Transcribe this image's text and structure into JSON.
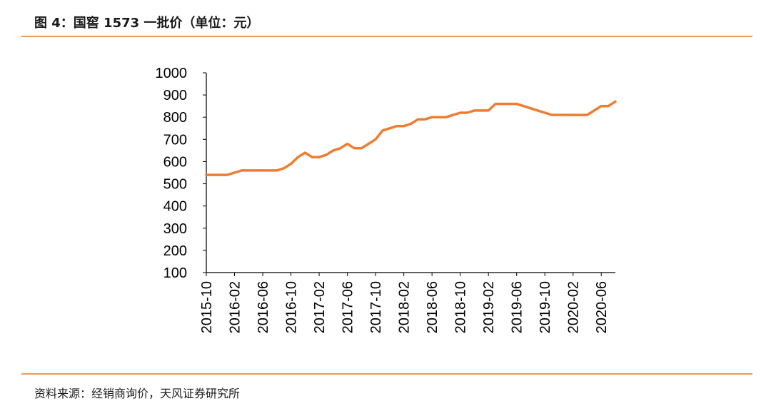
{
  "header": {
    "title": "图 4：国窖 1573 一批价（单位：元）"
  },
  "footer": {
    "source": "资料来源：经销商询价，天风证券研究所"
  },
  "colors": {
    "accent": "#ed9a55",
    "line": "#ed7d31",
    "axis": "#000000"
  },
  "chart_data": {
    "type": "line",
    "title": "",
    "xlabel": "",
    "ylabel": "",
    "ylim": [
      100,
      1000
    ],
    "yticks": [
      100,
      200,
      300,
      400,
      500,
      600,
      700,
      800,
      900,
      1000
    ],
    "grid": false,
    "xticks": [
      "2015-10",
      "2016-02",
      "2016-06",
      "2016-10",
      "2017-02",
      "2017-06",
      "2017-10",
      "2018-02",
      "2018-06",
      "2018-10",
      "2019-02",
      "2019-06",
      "2019-10",
      "2020-02",
      "2020-06"
    ],
    "series": [
      {
        "name": "",
        "x": [
          "2015-10",
          "2016-01",
          "2016-02",
          "2016-03",
          "2016-04",
          "2016-05",
          "2016-06",
          "2016-07",
          "2016-08",
          "2016-09",
          "2016-10",
          "2016-11",
          "2016-12",
          "2017-01",
          "2017-02",
          "2017-03",
          "2017-04",
          "2017-05",
          "2017-06",
          "2017-07",
          "2017-08",
          "2017-09",
          "2017-10",
          "2017-11",
          "2017-12",
          "2018-01",
          "2018-02",
          "2018-03",
          "2018-04",
          "2018-05",
          "2018-06",
          "2018-07",
          "2018-08",
          "2018-09",
          "2018-10",
          "2018-11",
          "2018-12",
          "2019-01",
          "2019-02",
          "2019-03",
          "2019-04",
          "2019-05",
          "2019-06",
          "2019-07",
          "2019-08",
          "2019-09",
          "2019-10",
          "2019-11",
          "2019-12",
          "2020-01",
          "2020-02",
          "2020-03",
          "2020-04",
          "2020-05",
          "2020-06",
          "2020-07",
          "2020-08"
        ],
        "values": [
          540,
          540,
          550,
          560,
          560,
          560,
          560,
          560,
          560,
          570,
          590,
          620,
          640,
          620,
          620,
          630,
          650,
          660,
          680,
          660,
          660,
          680,
          700,
          740,
          750,
          760,
          760,
          770,
          790,
          790,
          800,
          800,
          800,
          810,
          820,
          820,
          830,
          830,
          830,
          860,
          860,
          860,
          860,
          850,
          840,
          830,
          820,
          810,
          810,
          810,
          810,
          810,
          810,
          830,
          850,
          850,
          870
        ]
      }
    ]
  }
}
